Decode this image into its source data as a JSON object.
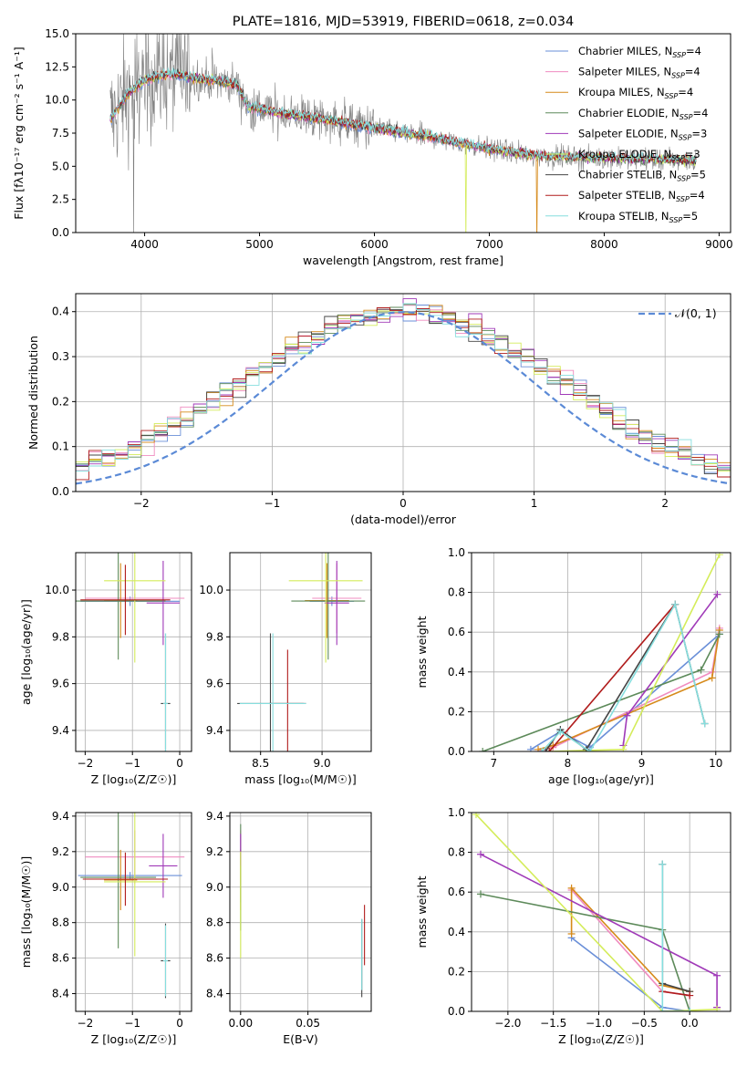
{
  "colors": {
    "Chabrier MILES": "#6a8fd8",
    "Salpeter MILES": "#f08cc0",
    "Kroupa MILES": "#d68a1a",
    "Chabrier ELODIE": "#5d8a5a",
    "Salpeter ELODIE": "#a03ab8",
    "Kroupa ELODIE": "#d4ec5a",
    "Chabrier STELIB": "#444444",
    "Salpeter STELIB": "#b01c1c",
    "Kroupa STELIB": "#86dede",
    "data": "#808080",
    "normal": "#5b8ad6"
  },
  "chart_data": [
    {
      "type": "line",
      "title": "PLATE=1816, MJD=53919, FIBERID=0618, z=0.034",
      "xlabel": "wavelength [Angstrom, rest frame]",
      "ylabel": "Flux [fλ10⁻¹⁷ erg cm⁻² s⁻¹ A⁻¹]",
      "xlim": [
        3400,
        9100
      ],
      "ylim": [
        0,
        15
      ],
      "xticks": [
        4000,
        5000,
        6000,
        7000,
        8000,
        9000
      ],
      "yticks": [
        0.0,
        2.5,
        5.0,
        7.5,
        10.0,
        12.5,
        15.0
      ],
      "grid": false,
      "legend_position": "top-right",
      "legend": [
        {
          "name": "Chabrier MILES",
          "nssp": "4"
        },
        {
          "name": "Salpeter MILES",
          "nssp": "4"
        },
        {
          "name": "Kroupa MILES",
          "nssp": "4"
        },
        {
          "name": "Chabrier ELODIE",
          "nssp": "4"
        },
        {
          "name": "Salpeter ELODIE",
          "nssp": "3"
        },
        {
          "name": "Kroupa ELODIE",
          "nssp": "3"
        },
        {
          "name": "Chabrier STELIB",
          "nssp": "5"
        },
        {
          "name": "Salpeter STELIB",
          "nssp": "4"
        },
        {
          "name": "Kroupa STELIB",
          "nssp": "5"
        }
      ],
      "model_continuum": {
        "x": [
          3700,
          3850,
          4000,
          4200,
          4500,
          4800,
          4900,
          5200,
          5600,
          6000,
          6500,
          7000,
          7400,
          7600,
          8000,
          8500,
          8800
        ],
        "y": [
          8.5,
          10.5,
          11.5,
          12.0,
          11.6,
          11.2,
          9.5,
          9.0,
          8.5,
          7.9,
          7.2,
          6.3,
          5.8,
          5.7,
          5.6,
          5.5,
          5.4
        ]
      }
    },
    {
      "type": "line",
      "xlabel": "(data-model)/error",
      "ylabel": "Normed distribution",
      "xlim": [
        -2.5,
        2.5
      ],
      "ylim": [
        0,
        0.44
      ],
      "xticks": [
        -2,
        -1,
        0,
        1,
        2
      ],
      "yticks": [
        0.0,
        0.1,
        0.2,
        0.3,
        0.4
      ],
      "grid": true,
      "legend_position": "top-right",
      "legend_label": "𝒩(0, 1)",
      "x": [
        -2.5,
        -2.0,
        -1.5,
        -1.0,
        -0.5,
        0.0,
        0.5,
        1.0,
        1.5,
        2.0,
        2.5
      ],
      "series": [
        {
          "name": "𝒩(0, 1)",
          "values": [
            0.018,
            0.054,
            0.13,
            0.242,
            0.352,
            0.399,
            0.352,
            0.242,
            0.13,
            0.054,
            0.018
          ]
        }
      ]
    },
    {
      "type": "scatter",
      "xlabel": "Z [log₁₀(Z/Z☉)]",
      "ylabel": "age  [log₁₀(age/yr)]",
      "xlim": [
        -2.2,
        0.25
      ],
      "ylim": [
        9.31,
        10.16
      ],
      "xticks": [
        -2,
        -1,
        0
      ],
      "yticks": [
        9.4,
        9.6,
        9.8,
        10.0
      ],
      "grid": true,
      "points": [
        {
          "series": "Chabrier MILES",
          "x": -1.05,
          "y": 9.952,
          "xerr": 1.05,
          "yerr": 0.02
        },
        {
          "series": "Salpeter MILES",
          "x": -0.95,
          "y": 9.965,
          "xerr": 1.05,
          "yerr": 0.02
        },
        {
          "series": "Kroupa MILES",
          "x": -1.25,
          "y": 9.955,
          "xerr": 0.35,
          "yerr": 0.16
        },
        {
          "series": "Chabrier ELODIE",
          "x": -1.3,
          "y": 9.953,
          "xerr": 1.0,
          "yerr": 0.25
        },
        {
          "series": "Salpeter ELODIE",
          "x": -0.35,
          "y": 9.945,
          "xerr": 0.35,
          "yerr": 0.18
        },
        {
          "series": "Kroupa ELODIE",
          "x": -0.95,
          "y": 10.04,
          "xerr": 0.65,
          "yerr": 0.35
        },
        {
          "series": "Chabrier STELIB",
          "x": -0.3,
          "y": 9.515,
          "xerr": 0.1,
          "yerr": 0.3
        },
        {
          "series": "Salpeter STELIB",
          "x": -1.15,
          "y": 9.958,
          "xerr": 0.95,
          "yerr": 0.15
        },
        {
          "series": "Kroupa STELIB",
          "x": -0.3,
          "y": 9.515,
          "xerr": 0.05,
          "yerr": 0.3
        }
      ]
    },
    {
      "type": "scatter",
      "xlabel": "mass [log₁₀(M/M☉)]",
      "ylabel": "",
      "xlim": [
        8.25,
        9.4
      ],
      "ylim": [
        9.31,
        10.16
      ],
      "xticks": [
        8.5,
        9.0
      ],
      "yticks": [
        9.4,
        9.6,
        9.8,
        10.0
      ],
      "grid": true,
      "points": [
        {
          "series": "Chabrier MILES",
          "x": 9.08,
          "y": 9.952,
          "xerr": 0.18,
          "yerr": 0.02
        },
        {
          "series": "Salpeter MILES",
          "x": 9.12,
          "y": 9.965,
          "xerr": 0.2,
          "yerr": 0.15
        },
        {
          "series": "Kroupa MILES",
          "x": 9.04,
          "y": 9.955,
          "xerr": 0.18,
          "yerr": 0.16
        },
        {
          "series": "Chabrier ELODIE",
          "x": 9.05,
          "y": 9.953,
          "xerr": 0.3,
          "yerr": 0.25
        },
        {
          "series": "Salpeter ELODIE",
          "x": 9.12,
          "y": 9.945,
          "xerr": 0.1,
          "yerr": 0.18
        },
        {
          "series": "Kroupa ELODIE",
          "x": 9.03,
          "y": 10.04,
          "xerr": 0.3,
          "yerr": 0.35
        },
        {
          "series": "Chabrier STELIB",
          "x": 8.58,
          "y": 9.515,
          "xerr": 0.27,
          "yerr": 0.3
        },
        {
          "series": "Salpeter STELIB",
          "x": 8.72,
          "y": 9.515,
          "xerr": 0.15,
          "yerr": 0.23
        },
        {
          "series": "Kroupa STELIB",
          "x": 8.6,
          "y": 9.515,
          "xerr": 0.27,
          "yerr": 0.3
        }
      ]
    },
    {
      "type": "line",
      "xlabel": "age  [log₁₀(age/yr)]",
      "ylabel": "mass weight",
      "xlim": [
        6.7,
        10.2
      ],
      "ylim": [
        0,
        1
      ],
      "xticks": [
        7,
        8,
        9,
        10
      ],
      "yticks": [
        0.0,
        0.2,
        0.4,
        0.6,
        0.8,
        1.0
      ],
      "grid": true,
      "series": [
        {
          "name": "Chabrier MILES",
          "x": [
            7.5,
            7.9,
            8.3,
            10.05
          ],
          "y": [
            0.01,
            0.1,
            0.02,
            0.59
          ]
        },
        {
          "name": "Salpeter MILES",
          "x": [
            7.6,
            7.8,
            9.95,
            10.05
          ],
          "y": [
            0.0,
            0.02,
            0.4,
            0.62
          ]
        },
        {
          "name": "Kroupa MILES",
          "x": [
            7.6,
            7.8,
            9.95,
            10.05
          ],
          "y": [
            0.01,
            0.03,
            0.37,
            0.61
          ]
        },
        {
          "name": "Chabrier ELODIE",
          "x": [
            6.85,
            9.8,
            10.05
          ],
          "y": [
            0.0,
            0.41,
            0.59
          ]
        },
        {
          "name": "Salpeter ELODIE",
          "x": [
            8.75,
            8.8,
            10.02
          ],
          "y": [
            0.03,
            0.18,
            0.79
          ]
        },
        {
          "name": "Kroupa ELODIE",
          "x": [
            7.75,
            8.75,
            10.05
          ],
          "y": [
            0.0,
            0.01,
            0.99
          ]
        },
        {
          "name": "Chabrier STELIB",
          "x": [
            7.7,
            7.9,
            8.25,
            9.45,
            9.85
          ],
          "y": [
            0.0,
            0.11,
            0.01,
            0.74,
            0.14
          ]
        },
        {
          "name": "Salpeter STELIB",
          "x": [
            7.75,
            9.45
          ],
          "y": [
            0.0,
            0.74
          ]
        },
        {
          "name": "Kroupa STELIB",
          "x": [
            7.65,
            7.9,
            8.3,
            9.45,
            9.85
          ],
          "y": [
            0.0,
            0.1,
            0.0,
            0.74,
            0.14
          ]
        }
      ]
    },
    {
      "type": "scatter",
      "xlabel": "Z [log₁₀(Z/Z☉)]",
      "ylabel": "mass [log₁₀(M/M☉)]",
      "xlim": [
        -2.2,
        0.25
      ],
      "ylim": [
        8.3,
        9.42
      ],
      "xticks": [
        -2,
        -1,
        0
      ],
      "yticks": [
        8.4,
        8.6,
        8.8,
        9.0,
        9.2,
        9.4
      ],
      "grid": true,
      "points": [
        {
          "series": "Chabrier MILES",
          "x": -1.05,
          "y": 9.065,
          "xerr": 1.1,
          "yerr": 0.02
        },
        {
          "series": "Salpeter MILES",
          "x": -0.95,
          "y": 9.17,
          "xerr": 1.05,
          "yerr": 0.15
        },
        {
          "series": "Kroupa MILES",
          "x": -1.25,
          "y": 9.04,
          "xerr": 0.35,
          "yerr": 0.17
        },
        {
          "series": "Chabrier ELODIE",
          "x": -1.3,
          "y": 9.055,
          "xerr": 0.8,
          "yerr": 0.4
        },
        {
          "series": "Salpeter ELODIE",
          "x": -0.35,
          "y": 9.12,
          "xerr": 0.3,
          "yerr": 0.18
        },
        {
          "series": "Kroupa ELODIE",
          "x": -0.95,
          "y": 9.03,
          "xerr": 0.65,
          "yerr": 0.42
        },
        {
          "series": "Chabrier STELIB",
          "x": -0.3,
          "y": 8.585,
          "xerr": 0.1,
          "yerr": 0.21
        },
        {
          "series": "Salpeter STELIB",
          "x": -1.15,
          "y": 9.045,
          "xerr": 0.9,
          "yerr": 0.15
        },
        {
          "series": "Kroupa STELIB",
          "x": -0.3,
          "y": 8.585,
          "xerr": 0.05,
          "yerr": 0.2
        }
      ]
    },
    {
      "type": "scatter",
      "xlabel": "E(B-V)",
      "ylabel": "",
      "xlim": [
        -0.008,
        0.097
      ],
      "ylim": [
        8.3,
        9.42
      ],
      "xticks": [
        0.0,
        0.05
      ],
      "yticks": [
        8.4,
        8.6,
        8.8,
        9.0,
        9.2,
        9.4
      ],
      "grid": true,
      "points": [
        {
          "series": "Chabrier MILES",
          "x": 0.0,
          "y": 9.065,
          "xerr": 0,
          "yerr": 0.15
        },
        {
          "series": "Salpeter MILES",
          "x": 0.0,
          "y": 9.17,
          "xerr": 0,
          "yerr": 0.15
        },
        {
          "series": "Kroupa MILES",
          "x": 0.0,
          "y": 9.04,
          "xerr": 0,
          "yerr": 0.17
        },
        {
          "series": "Chabrier ELODIE",
          "x": 0.0,
          "y": 9.055,
          "xerr": 0,
          "yerr": 0.3
        },
        {
          "series": "Salpeter ELODIE",
          "x": 0.0,
          "y": 9.21,
          "xerr": 0,
          "yerr": 0.09
        },
        {
          "series": "Kroupa ELODIE",
          "x": 0.0,
          "y": 8.9,
          "xerr": 0,
          "yerr": 0.3
        },
        {
          "series": "Chabrier STELIB",
          "x": 0.09,
          "y": 8.6,
          "xerr": 0,
          "yerr": 0.22
        },
        {
          "series": "Salpeter STELIB",
          "x": 0.092,
          "y": 8.73,
          "xerr": 0,
          "yerr": 0.17
        },
        {
          "series": "Kroupa STELIB",
          "x": 0.09,
          "y": 8.62,
          "xerr": 0,
          "yerr": 0.2
        }
      ]
    },
    {
      "type": "line",
      "xlabel": "Z [log₁₀(Z/Z☉)]",
      "ylabel": "mass weight",
      "xlim": [
        -2.4,
        0.45
      ],
      "ylim": [
        0,
        1
      ],
      "xticks": [
        -2.0,
        -1.5,
        -1.0,
        -0.5,
        0.0
      ],
      "yticks": [
        0.0,
        0.2,
        0.4,
        0.6,
        0.8,
        1.0
      ],
      "grid": true,
      "series": [
        {
          "name": "Chabrier MILES",
          "x": [
            -1.3,
            -0.3,
            0.0
          ],
          "y": [
            0.37,
            0.02,
            0.0
          ]
        },
        {
          "name": "Salpeter MILES",
          "x": [
            -1.3,
            -0.3,
            0.0
          ],
          "y": [
            0.61,
            0.1,
            0.08
          ]
        },
        {
          "name": "Kroupa MILES",
          "x": [
            -1.3,
            -1.3,
            -0.3,
            0.0
          ],
          "y": [
            0.39,
            0.62,
            0.13,
            0.1
          ]
        },
        {
          "name": "Chabrier ELODIE",
          "x": [
            -2.3,
            -0.3,
            0.0
          ],
          "y": [
            0.59,
            0.41,
            0.0
          ]
        },
        {
          "name": "Salpeter ELODIE",
          "x": [
            -2.3,
            0.3,
            0.3
          ],
          "y": [
            0.79,
            0.18,
            0.02
          ]
        },
        {
          "name": "Kroupa ELODIE",
          "x": [
            -2.35,
            -0.3,
            0.3
          ],
          "y": [
            0.99,
            0.0,
            0.01
          ]
        },
        {
          "name": "Chabrier STELIB",
          "x": [
            -0.3,
            -0.3,
            0.0
          ],
          "y": [
            0.74,
            0.14,
            0.1
          ]
        },
        {
          "name": "Salpeter STELIB",
          "x": [
            -0.3,
            0.0
          ],
          "y": [
            0.1,
            0.08
          ]
        },
        {
          "name": "Kroupa STELIB",
          "x": [
            -0.3,
            -0.3,
            0.0
          ],
          "y": [
            0.74,
            0.0,
            0.0
          ]
        }
      ]
    }
  ]
}
